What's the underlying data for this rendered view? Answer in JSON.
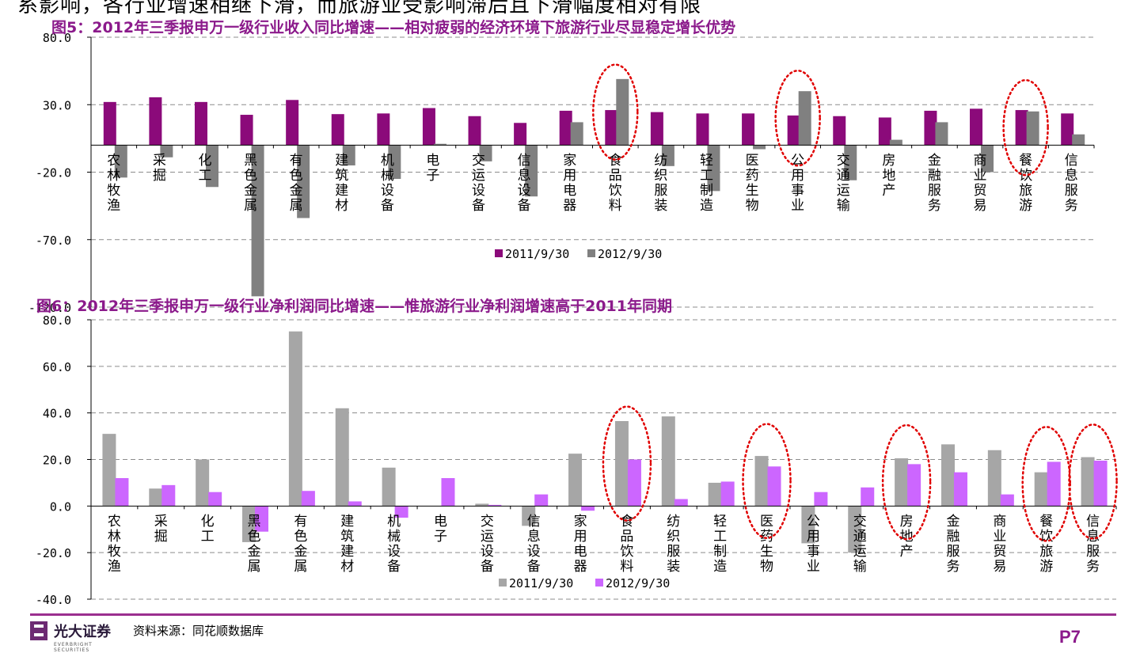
{
  "page_text": "系影响，各行业增速相继下滑，而旅游业受影响滞后且下滑幅度相对有限",
  "footer": {
    "logo_text": "光大证券",
    "logo_sub": "EVERBRIGHT SECURITIES",
    "source": "资料来源：同花顺数据库",
    "page": "P7"
  },
  "colors": {
    "series1_chart1": "#8B0A7A",
    "series2_chart1": "#808080",
    "series1_chart2": "#A6A6A6",
    "series2_chart2": "#CC66FF",
    "highlight": "#E00000",
    "title": "#8B1A8B"
  },
  "chart_data": [
    {
      "type": "bar",
      "title": "图5：2012年三季报申万一级行业收入同比增速——相对疲弱的经济环境下旅游行业尽显稳定增长优势",
      "categories": [
        "农林牧渔",
        "采掘",
        "化工",
        "黑色金属",
        "有色金属",
        "建筑建材",
        "机械设备",
        "电子",
        "交运设备",
        "信息设备",
        "家用电器",
        "食品饮料",
        "纺织服装",
        "轻工制造",
        "医药生物",
        "公用事业",
        "交通运输",
        "房地产",
        "金融服务",
        "商业贸易",
        "餐饮旅游",
        "信息服务"
      ],
      "series": [
        {
          "name": "2011/9/30",
          "values": [
            32.0,
            35.5,
            32.0,
            22.5,
            33.5,
            23.0,
            23.5,
            27.5,
            21.5,
            16.5,
            25.5,
            26.0,
            24.5,
            23.5,
            23.5,
            22.0,
            21.5,
            20.5,
            25.5,
            27.0,
            26.0,
            23.5
          ]
        },
        {
          "name": "2012/9/30",
          "values": [
            -24.0,
            -9.0,
            -31.0,
            -112.0,
            -54.0,
            -15.0,
            -25.0,
            1.0,
            -12.0,
            -38.0,
            17.0,
            49.0,
            -15.5,
            -34.0,
            -3.0,
            40.0,
            -26.0,
            4.0,
            17.0,
            -20.0,
            25.0,
            8.0
          ]
        }
      ],
      "ylim": [
        -120,
        80
      ],
      "ytick_labels": [
        "80.0",
        "30.0",
        "-20.0",
        "-70.0",
        "-120.0"
      ],
      "yticks": [
        80,
        30,
        -20,
        -70,
        -120
      ],
      "legend": "bottom-center",
      "grid": true,
      "highlighted": [
        "食品饮料",
        "公用事业",
        "餐饮旅游"
      ]
    },
    {
      "type": "bar",
      "title": "图6：2012年三季报申万一级行业净利润同比增速——惟旅游行业净利润增速高于2011年同期",
      "categories": [
        "农林牧渔",
        "采掘",
        "化工",
        "黑色金属",
        "有色金属",
        "建筑建材",
        "机械设备",
        "电子",
        "交运设备",
        "信息设备",
        "家用电器",
        "食品饮料",
        "纺织服装",
        "轻工制造",
        "医药生物",
        "公用事业",
        "交通运输",
        "房地产",
        "金融服务",
        "商业贸易",
        "餐饮旅游",
        "信息服务"
      ],
      "series": [
        {
          "name": "2011/9/30",
          "values": [
            31.0,
            7.5,
            20.0,
            -15.5,
            75.0,
            42.0,
            16.5,
            0.0,
            1.0,
            -8.5,
            22.5,
            36.5,
            38.5,
            10.0,
            21.5,
            -16.0,
            -20.0,
            20.5,
            26.5,
            24.0,
            14.5,
            21.0
          ]
        },
        {
          "name": "2012/9/30",
          "values": [
            12.0,
            9.0,
            6.0,
            -11.0,
            6.5,
            2.0,
            -5.0,
            12.0,
            0.5,
            5.0,
            -2.0,
            20.0,
            3.0,
            10.5,
            17.0,
            6.0,
            8.0,
            18.0,
            14.5,
            5.0,
            19.0,
            19.5
          ]
        }
      ],
      "ylim": [
        -40,
        80
      ],
      "ytick_labels": [
        "80.0",
        "60.0",
        "40.0",
        "20.0",
        "0.0",
        "-20.0",
        "-40.0"
      ],
      "yticks": [
        80,
        60,
        40,
        20,
        0,
        -20,
        -40
      ],
      "legend": "bottom-center",
      "grid": true,
      "highlighted": [
        "食品饮料",
        "医药生物",
        "房地产",
        "餐饮旅游",
        "信息服务"
      ]
    }
  ]
}
